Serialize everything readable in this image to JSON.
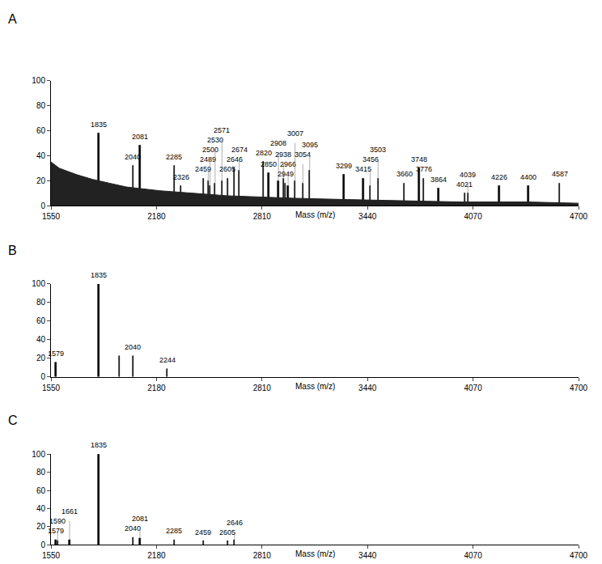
{
  "chart_data": [
    {
      "type": "bar",
      "title": "A",
      "x_label": "Mass (m/z)",
      "xlim": [
        1550,
        4700
      ],
      "xticks": [
        1550,
        2180,
        2810,
        3440,
        4070,
        4700
      ],
      "ylim": [
        0,
        100
      ],
      "yticks": [
        0,
        20,
        40,
        60,
        80,
        100
      ],
      "grid": false,
      "series": [
        {
          "type": "line",
          "color": "#222222",
          "x": [
            1550,
            1600,
            1700,
            1800,
            1900,
            2000,
            2200,
            2400,
            2600,
            2800,
            3000,
            3300,
            3600,
            4000,
            4400,
            4700
          ],
          "values": [
            35,
            30,
            25,
            21,
            18,
            15,
            12,
            10,
            8,
            7,
            6,
            5,
            4,
            3,
            3,
            2
          ]
        },
        {
          "type": "bar",
          "color": "#000000",
          "x": [
            1835,
            2040,
            2081,
            2285,
            2326,
            2459,
            2489,
            2500,
            2530,
            2571,
            2605,
            2646,
            2674,
            2820,
            2850,
            2908,
            2938,
            2949,
            2966,
            3007,
            3054,
            3095,
            3299,
            3415,
            3456,
            3503,
            3660,
            3748,
            3776,
            3864,
            4021,
            4039,
            4226,
            4400,
            4587
          ],
          "values": [
            58,
            32,
            48,
            32,
            16,
            22,
            20,
            16,
            18,
            20,
            22,
            30,
            28,
            35,
            26,
            20,
            22,
            18,
            16,
            20,
            18,
            28,
            25,
            22,
            16,
            22,
            18,
            30,
            22,
            14,
            10,
            10,
            16,
            16,
            18
          ],
          "labels": [
            "1835",
            "2040",
            "2081",
            "2285",
            "2326",
            "2459",
            "2489",
            "2500",
            "2530",
            "2571",
            "2605",
            "2646",
            "2674",
            "2820",
            "2850",
            "2908",
            "2938",
            "2949",
            "2966",
            "3007",
            "3054",
            "3095",
            "3299",
            "3415",
            "3456",
            "3503",
            "3660",
            "3748",
            "3776",
            "3864",
            "4021",
            "4039",
            "4226",
            "4400",
            "4587"
          ]
        }
      ]
    },
    {
      "type": "bar",
      "title": "B",
      "x_label": "Mass (m/z)",
      "xlim": [
        1550,
        4700
      ],
      "xticks": [
        1550,
        2180,
        2810,
        3440,
        4070,
        4700
      ],
      "ylim": [
        0,
        100
      ],
      "yticks": [
        0,
        20,
        40,
        60,
        80,
        100
      ],
      "grid": false,
      "series": [
        {
          "type": "bar",
          "color": "#000000",
          "x": [
            1579,
            1835,
            1960,
            2040,
            2244
          ],
          "values": [
            15,
            100,
            22,
            22,
            8
          ],
          "labels": [
            "1579",
            "1835",
            null,
            "2040",
            "2244"
          ]
        }
      ]
    },
    {
      "type": "bar",
      "title": "C",
      "x_label": "Mass (m/z)",
      "xlim": [
        1550,
        4700
      ],
      "xticks": [
        1550,
        2180,
        2810,
        3440,
        4070,
        4700
      ],
      "ylim": [
        0,
        100
      ],
      "yticks": [
        0,
        20,
        40,
        60,
        80,
        100
      ],
      "grid": false,
      "series": [
        {
          "type": "bar",
          "color": "#000000",
          "x": [
            1579,
            1590,
            1661,
            1835,
            2040,
            2081,
            2285,
            2459,
            2605,
            2646
          ],
          "values": [
            5,
            4,
            5,
            100,
            8,
            7,
            5,
            4,
            4,
            5
          ],
          "labels": [
            "1579",
            "1590",
            "1661",
            "1835",
            "2040",
            "2081",
            "2285",
            "2459",
            "2605",
            "2646"
          ]
        }
      ]
    }
  ]
}
